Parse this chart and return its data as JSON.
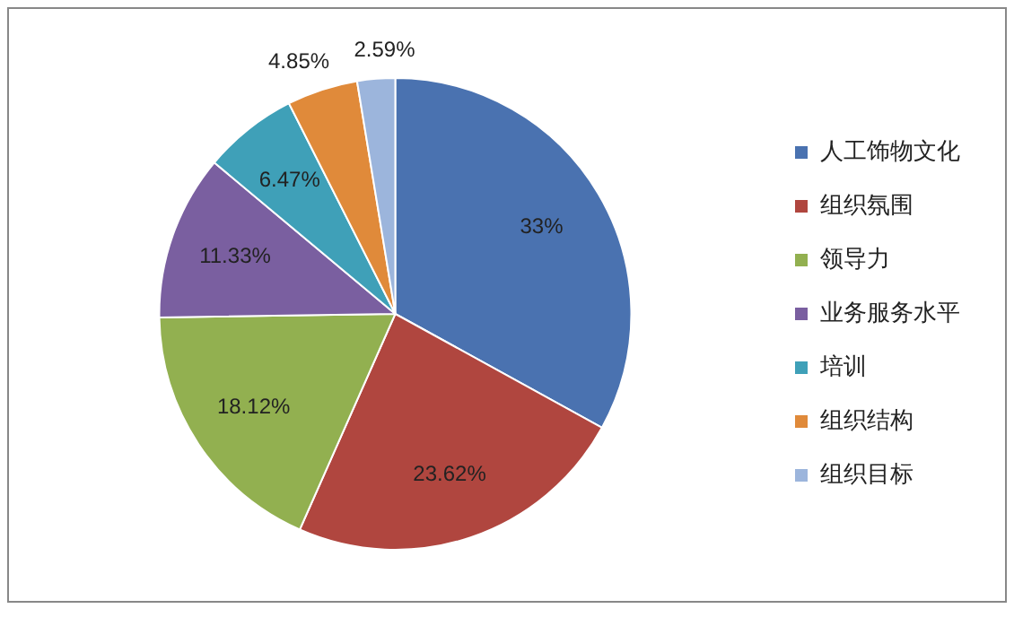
{
  "chart_data": {
    "type": "pie",
    "categories": [
      "人工饰物文化",
      "组织氛围",
      "领导力",
      "业务服务水平",
      "培训",
      "组织结构",
      "组织目标"
    ],
    "values": [
      33,
      23.62,
      18.12,
      11.33,
      6.47,
      4.85,
      2.59
    ],
    "colors": [
      "#4a72b0",
      "#b0463f",
      "#92b050",
      "#7a5fa0",
      "#3fa0b8",
      "#e08a3a",
      "#9cb5dc"
    ],
    "value_labels": [
      "33%",
      "23.62%",
      "18.12%",
      "11.33%",
      "6.47%",
      "4.85%",
      "2.59%"
    ],
    "legend": "right"
  }
}
